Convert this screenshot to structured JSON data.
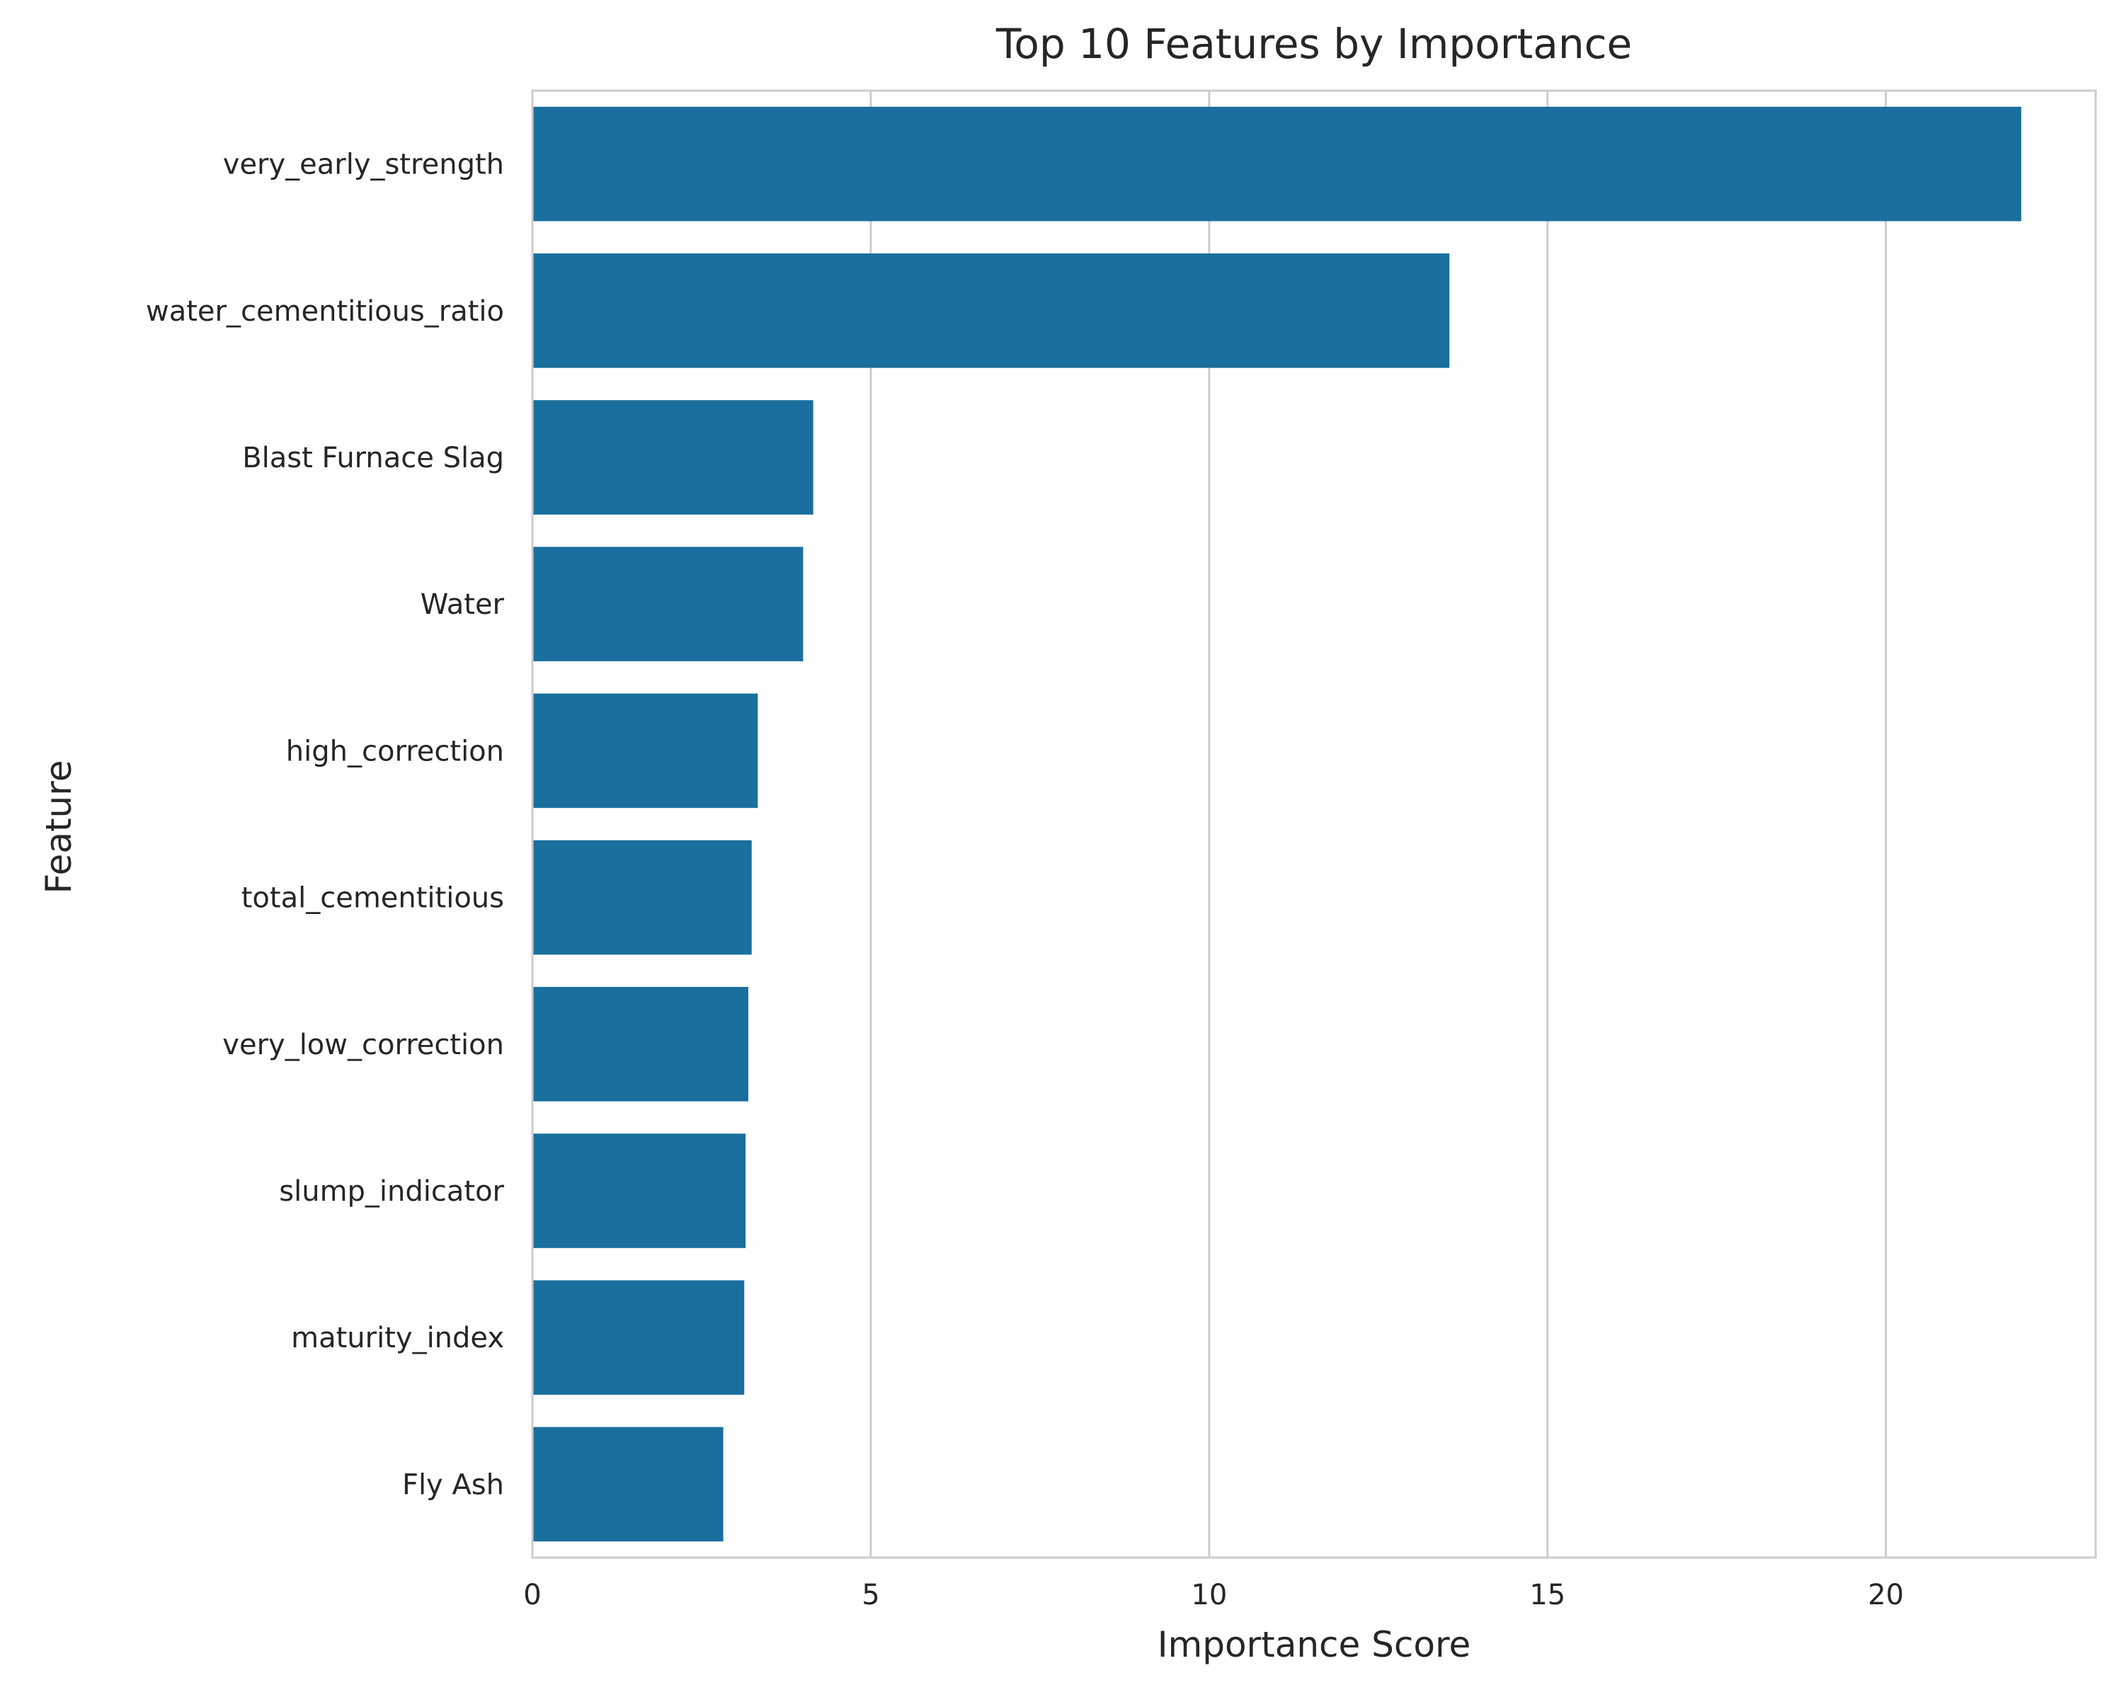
{
  "chart_data": {
    "type": "bar",
    "orientation": "horizontal",
    "title": "Top 10 Features by Importance",
    "xlabel": "Importance Score",
    "ylabel": "Feature",
    "xlim": [
      0,
      23.1
    ],
    "xticks": [
      0,
      5,
      10,
      15,
      20
    ],
    "grid": "vertical",
    "legend": "none",
    "bar_color": "#1a6f9e",
    "categories": [
      "very_early_strength",
      "water_cementitious_ratio",
      "Blast Furnace Slag",
      "Water",
      "high_correction",
      "total_cementitious",
      "very_low_correction",
      "slump_indicator",
      "maturity_index",
      "Fly Ash"
    ],
    "values": [
      22.0,
      13.55,
      4.15,
      4.0,
      3.33,
      3.24,
      3.19,
      3.15,
      3.13,
      2.82
    ]
  }
}
